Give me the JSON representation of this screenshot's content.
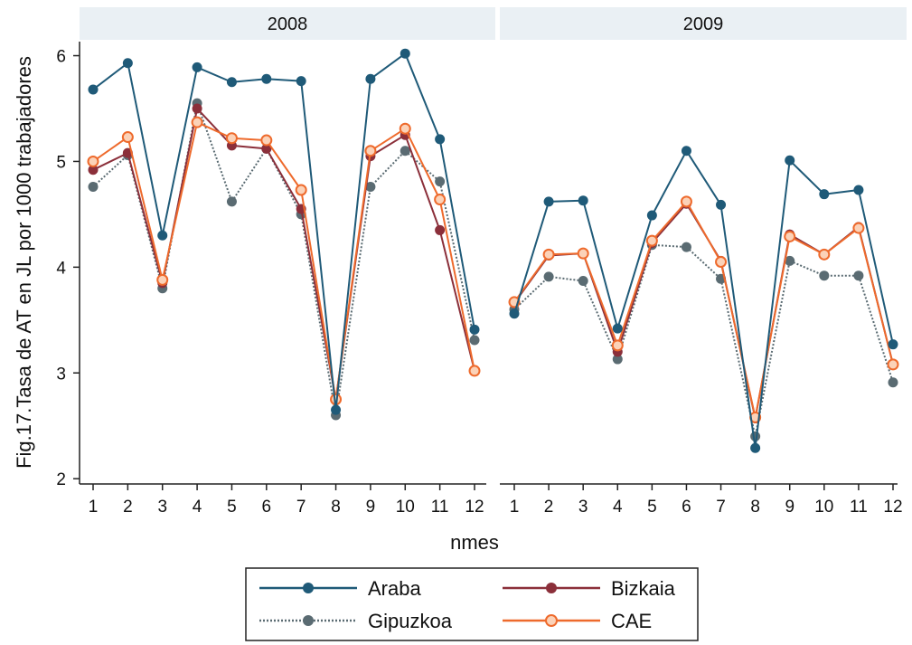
{
  "chart_data": {
    "type": "line",
    "ylabel": "Fig.17.Tasa de AT en JL por 1000 trabajadores",
    "xlabel": "nmes",
    "ylim": [
      2,
      6
    ],
    "yticks": [
      2,
      3,
      4,
      5,
      6
    ],
    "categories": [
      "1",
      "2",
      "3",
      "4",
      "5",
      "6",
      "7",
      "8",
      "9",
      "10",
      "11",
      "12"
    ],
    "legend_position": "bottom",
    "colors": {
      "Araba": "#1f5a78",
      "Bizkaia": "#8b2f3a",
      "Gipuzkoa": "#5a6b72",
      "CAE": "#ee6a2c"
    },
    "panels": [
      {
        "title": "2008",
        "series": [
          {
            "name": "Araba",
            "values": [
              5.68,
              5.93,
              4.3,
              5.89,
              5.75,
              5.78,
              5.76,
              2.65,
              5.78,
              6.02,
              5.21,
              3.41
            ]
          },
          {
            "name": "Bizkaia",
            "values": [
              4.92,
              5.08,
              3.85,
              5.5,
              5.15,
              5.12,
              4.55,
              2.75,
              5.05,
              5.25,
              4.35,
              3.02
            ]
          },
          {
            "name": "Gipuzkoa",
            "values": [
              4.76,
              5.06,
              3.8,
              5.55,
              4.62,
              5.12,
              4.5,
              2.6,
              4.76,
              5.1,
              4.81,
              3.31
            ]
          },
          {
            "name": "CAE",
            "values": [
              5.0,
              5.23,
              3.88,
              5.37,
              5.22,
              5.2,
              4.73,
              2.75,
              5.1,
              5.31,
              4.64,
              3.02
            ]
          }
        ]
      },
      {
        "title": "2009",
        "series": [
          {
            "name": "Araba",
            "values": [
              3.56,
              4.62,
              4.63,
              3.42,
              4.49,
              5.1,
              4.59,
              2.29,
              5.01,
              4.69,
              4.73,
              3.27
            ]
          },
          {
            "name": "Bizkaia",
            "values": [
              3.66,
              4.11,
              4.13,
              3.2,
              4.23,
              4.6,
              4.06,
              2.57,
              4.31,
              4.12,
              4.38,
              3.08
            ]
          },
          {
            "name": "Gipuzkoa",
            "values": [
              3.6,
              3.91,
              3.87,
              3.13,
              4.21,
              4.19,
              3.89,
              2.4,
              4.06,
              3.92,
              3.92,
              2.91
            ]
          },
          {
            "name": "CAE",
            "values": [
              3.67,
              4.12,
              4.13,
              3.26,
              4.25,
              4.62,
              4.05,
              2.58,
              4.29,
              4.12,
              4.37,
              3.08
            ]
          }
        ]
      }
    ]
  }
}
